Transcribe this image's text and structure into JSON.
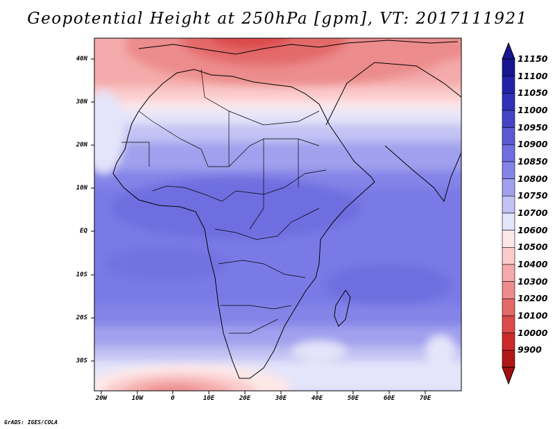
{
  "title": "Geopotential Height at 250hPa [gpm], VT: 2017111921",
  "credit": "GrADS: IGES/COLA",
  "map": {
    "lon_range": [
      -22,
      80
    ],
    "lat_range": [
      -37,
      45
    ],
    "lat_labels": [
      "40N",
      "30N",
      "20N",
      "10N",
      "EQ",
      "10S",
      "20S",
      "30S"
    ],
    "lon_labels": [
      "20W",
      "10W",
      "0",
      "10E",
      "20E",
      "30E",
      "40E",
      "50E",
      "60E",
      "70E"
    ]
  },
  "colorbar": {
    "labels": [
      "11150",
      "11100",
      "11050",
      "11000",
      "10950",
      "10900",
      "10850",
      "10800",
      "10750",
      "10700",
      "10600",
      "10500",
      "10400",
      "10300",
      "10200",
      "10100",
      "10000",
      "9900"
    ],
    "colors": [
      "#16168f",
      "#2222a8",
      "#3030b8",
      "#4444c6",
      "#5a5ad2",
      "#6e6ee0",
      "#8484e8",
      "#a0a0ee",
      "#c2c2f4",
      "#e4e4fa",
      "#fde8e8",
      "#fbcaca",
      "#f4aaaa",
      "#ec8c8c",
      "#e46a6a",
      "#dc4a4a",
      "#cc2a2a",
      "#b01818"
    ]
  }
}
